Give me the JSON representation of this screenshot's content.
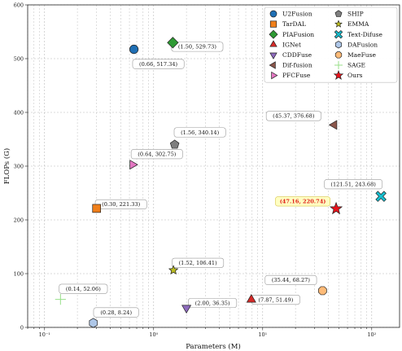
{
  "chart_data": {
    "type": "scatter",
    "title": "",
    "xlabel": "Parameters (M)",
    "ylabel": "FLOPs (G)",
    "x_scale": "log",
    "xlim": [
      0.07,
      180
    ],
    "ylim": [
      0,
      600
    ],
    "x_ticks": [
      0.1,
      1,
      10,
      100
    ],
    "x_tick_labels": [
      "10⁻¹",
      "10⁰",
      "10¹",
      "10²"
    ],
    "y_ticks": [
      0,
      100,
      200,
      300,
      400,
      500,
      600
    ],
    "y_tick_labels": [
      "0",
      "100",
      "200",
      "300",
      "400",
      "500",
      "600"
    ],
    "grid": true,
    "legend_position": "top-right",
    "series": [
      {
        "name": "U2Fusion",
        "x": 0.66,
        "y": 517.34,
        "label": "(0.66, 517.34)",
        "marker": "circle",
        "color": "#1f6fb4"
      },
      {
        "name": "TarDAL",
        "x": 0.3,
        "y": 221.33,
        "label": "(0.30, 221.33)",
        "marker": "square",
        "color": "#f07f1a"
      },
      {
        "name": "PIAFusion",
        "x": 1.5,
        "y": 529.73,
        "label": "(1.50, 529.73)",
        "marker": "diamond",
        "color": "#2e9a34"
      },
      {
        "name": "IGNet",
        "x": 7.87,
        "y": 51.49,
        "label": "(7.87, 51.49)",
        "marker": "triangle-up",
        "color": "#d62a28"
      },
      {
        "name": "CDDFuse",
        "x": 2.0,
        "y": 36.35,
        "label": "(2.00, 36.35)",
        "marker": "triangle-down",
        "color": "#8e6bbd"
      },
      {
        "name": "Dif-fusion",
        "x": 45.37,
        "y": 376.68,
        "label": "(45.37, 376.68)",
        "marker": "triangle-left",
        "color": "#8a564b"
      },
      {
        "name": "PFCFuse",
        "x": 0.64,
        "y": 302.75,
        "label": "(0.64, 302.75)",
        "marker": "triangle-right",
        "color": "#e377c2"
      },
      {
        "name": "SHIP",
        "x": 1.56,
        "y": 340.14,
        "label": "(1.56, 340.14)",
        "marker": "pentagon",
        "color": "#7f7f7f"
      },
      {
        "name": "EMMA",
        "x": 1.52,
        "y": 106.41,
        "label": "(1.52, 106.41)",
        "marker": "star-small",
        "color": "#bcbd22"
      },
      {
        "name": "Text-Difuse",
        "x": 121.51,
        "y": 243.68,
        "label": "(121.51, 243.68)",
        "marker": "x-filled",
        "color": "#17becf"
      },
      {
        "name": "DAFusion",
        "x": 0.28,
        "y": 8.24,
        "label": "(0.28, 8.24)",
        "marker": "hexagon",
        "color": "#aec7e8"
      },
      {
        "name": "MaeFuse",
        "x": 35.44,
        "y": 68.27,
        "label": "(35.44, 68.27)",
        "marker": "octagon",
        "color": "#ffbb78"
      },
      {
        "name": "SAGE",
        "x": 0.14,
        "y": 52.06,
        "label": "(0.14, 52.06)",
        "marker": "plus",
        "color": "#98df8a"
      },
      {
        "name": "Ours",
        "x": 47.16,
        "y": 220.74,
        "label": "(47.16, 220.74)",
        "marker": "star",
        "color": "#e8121b",
        "highlight": true
      }
    ]
  }
}
